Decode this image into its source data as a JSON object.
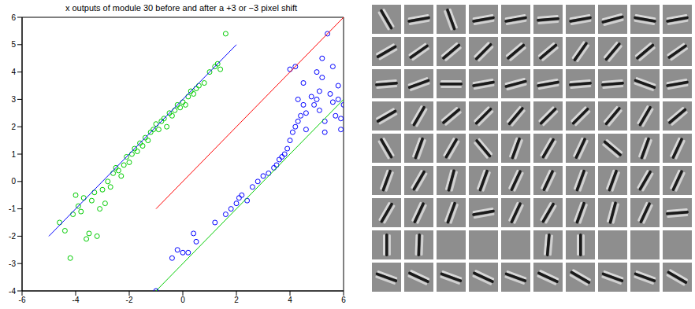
{
  "chart_data": {
    "type": "scatter",
    "title": "x outputs of module 30 before and after a +3 or −3 pixel shift",
    "xlim": [
      -6,
      6
    ],
    "ylim": [
      -4,
      6
    ],
    "xticks": [
      -6,
      -4,
      -2,
      0,
      2,
      4,
      6
    ],
    "yticks": [
      -4,
      -3,
      -2,
      -1,
      0,
      1,
      2,
      3,
      4,
      5,
      6
    ],
    "grid": false,
    "series": [
      {
        "type": "scatter",
        "marker": "o",
        "color": "#00cc00",
        "x": [
          -4.6,
          -4.4,
          -4.2,
          -4.1,
          -4.0,
          -3.9,
          -3.8,
          -3.7,
          -3.6,
          -3.5,
          -3.4,
          -3.3,
          -3.2,
          -3.1,
          -3.0,
          -2.9,
          -2.8,
          -2.7,
          -2.6,
          -2.5,
          -2.4,
          -2.3,
          -2.2,
          -2.1,
          -2.0,
          -1.9,
          -1.8,
          -1.7,
          -1.6,
          -1.5,
          -1.4,
          -1.3,
          -1.2,
          -1.1,
          -1.0,
          -0.9,
          -0.8,
          -0.7,
          -0.6,
          -0.5,
          -0.4,
          -0.3,
          -0.2,
          -0.1,
          0.0,
          0.1,
          0.2,
          0.3,
          0.4,
          0.5,
          0.6,
          0.8,
          1.0,
          1.2,
          1.3,
          1.4,
          1.6
        ],
        "y": [
          -1.5,
          -1.8,
          -2.8,
          -1.2,
          -0.5,
          -0.9,
          -1.1,
          -0.6,
          -2.1,
          -1.9,
          -0.7,
          -0.4,
          -2.0,
          -1.0,
          -0.3,
          -0.8,
          0.0,
          -0.2,
          0.3,
          0.5,
          0.4,
          0.2,
          0.6,
          0.9,
          0.7,
          1.0,
          1.2,
          1.1,
          1.4,
          1.3,
          1.6,
          1.5,
          1.8,
          1.9,
          2.1,
          1.9,
          2.2,
          2.3,
          2.0,
          2.5,
          2.4,
          2.6,
          2.8,
          2.7,
          2.9,
          2.8,
          3.1,
          3.3,
          3.2,
          3.4,
          3.5,
          3.6,
          4.0,
          4.2,
          4.3,
          4.1,
          5.4
        ]
      },
      {
        "type": "scatter",
        "marker": "o",
        "color": "#0000ff",
        "x": [
          -1.0,
          -0.4,
          -0.2,
          0.0,
          0.2,
          0.4,
          0.5,
          1.2,
          1.6,
          1.8,
          2.0,
          2.1,
          2.2,
          2.4,
          2.6,
          2.8,
          3.0,
          3.2,
          3.4,
          3.5,
          3.6,
          3.7,
          3.8,
          3.9,
          4.0,
          4.0,
          4.1,
          4.2,
          4.2,
          4.3,
          4.3,
          4.4,
          4.5,
          4.5,
          4.6,
          4.6,
          4.8,
          4.9,
          5.0,
          5.0,
          5.1,
          5.1,
          5.2,
          5.2,
          5.3,
          5.3,
          5.4,
          5.5,
          5.6,
          5.6,
          5.7,
          5.8,
          5.8,
          5.9,
          5.9,
          6.0
        ],
        "y": [
          -4.0,
          -2.8,
          -2.5,
          -2.6,
          -2.6,
          -1.9,
          -2.2,
          -1.5,
          -1.2,
          -1.0,
          -0.8,
          -0.6,
          -0.5,
          -0.7,
          -0.2,
          0.0,
          0.2,
          0.3,
          0.5,
          0.6,
          0.8,
          0.9,
          1.0,
          1.2,
          1.5,
          4.1,
          1.8,
          2.0,
          4.2,
          2.2,
          3.0,
          2.4,
          2.8,
          3.6,
          2.5,
          1.9,
          3.1,
          2.8,
          3.0,
          4.0,
          3.3,
          2.6,
          4.5,
          3.8,
          2.2,
          1.8,
          5.4,
          3.2,
          2.9,
          4.2,
          2.4,
          3.0,
          3.5,
          2.3,
          1.9,
          2.8
        ]
      },
      {
        "type": "line",
        "line_style": "solid",
        "color": "#0000ff",
        "x": [
          -5,
          2
        ],
        "y": [
          -2,
          5
        ]
      },
      {
        "type": "line",
        "line_style": "solid",
        "color": "#ff0000",
        "x": [
          -1,
          6
        ],
        "y": [
          -1,
          6
        ]
      },
      {
        "type": "line",
        "line_style": "solid",
        "color": "#00cc00",
        "x": [
          -1,
          6
        ],
        "y": [
          -4,
          3
        ]
      }
    ]
  },
  "filter_grid": {
    "orientations": [
      [
        -60,
        10,
        -70,
        10,
        10,
        5,
        10,
        15,
        -10,
        10
      ],
      [
        30,
        35,
        40,
        45,
        40,
        40,
        55,
        50,
        40,
        35
      ],
      [
        5,
        20,
        0,
        10,
        15,
        10,
        5,
        5,
        -20,
        10
      ],
      [
        30,
        60,
        40,
        45,
        50,
        45,
        45,
        50,
        60,
        40
      ],
      [
        -60,
        70,
        60,
        -50,
        70,
        60,
        65,
        -40,
        70,
        65
      ],
      [
        70,
        60,
        75,
        70,
        65,
        65,
        70,
        70,
        60,
        65
      ],
      [
        60,
        65,
        70,
        10,
        65,
        60,
        70,
        75,
        65,
        5
      ],
      [
        90,
        88,
        null,
        null,
        null,
        85,
        90,
        null,
        null,
        null
      ],
      [
        -20,
        -25,
        -20,
        -25,
        -20,
        -25,
        -30,
        -20,
        -20,
        -30
      ]
    ]
  }
}
